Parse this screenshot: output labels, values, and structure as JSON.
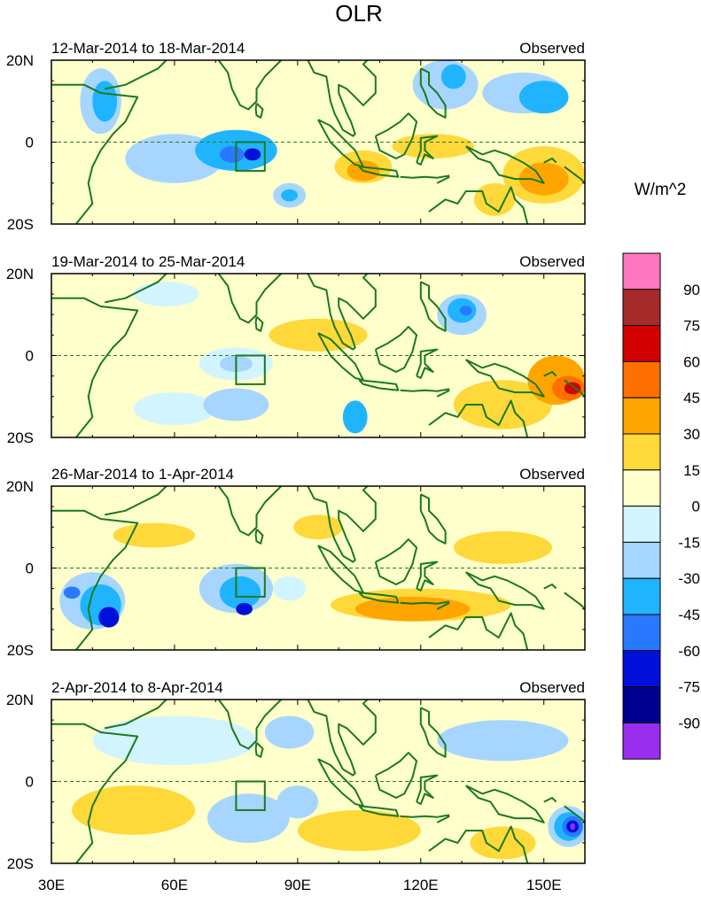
{
  "chart_data": {
    "type": "heatmap",
    "title": "OLR",
    "units": "W/m^2",
    "x_ticks": [
      "30E",
      "60E",
      "90E",
      "120E",
      "150E"
    ],
    "y_ticks": [
      "20N",
      "0",
      "20S"
    ],
    "xlim": [
      30,
      160
    ],
    "ylim": [
      -20,
      20
    ],
    "colorbar": {
      "levels": [
        "90",
        "75",
        "60",
        "45",
        "30",
        "15",
        "0",
        "-15",
        "-30",
        "-45",
        "-60",
        "-75",
        "-90"
      ],
      "colors": [
        "#ff77c0",
        "#a52a2a",
        "#d40000",
        "#ff7000",
        "#ffa500",
        "#ffd83a",
        "#ffffcc",
        "#d2f4ff",
        "#a6d6ff",
        "#20b4ff",
        "#2a78ff",
        "#0010d8",
        "#00008e",
        "#9a2eef"
      ]
    },
    "box_region": {
      "lon": [
        75,
        82
      ],
      "lat": [
        -7,
        0
      ]
    },
    "panels": [
      {
        "period": "12-Mar-2014 to 18-Mar-2014",
        "label": "Observed",
        "anomalies": [
          {
            "lon": 60,
            "lat": -4,
            "rx": 12,
            "ry": 6,
            "value": -30
          },
          {
            "lon": 75,
            "lat": -2,
            "rx": 10,
            "ry": 5,
            "value": -45
          },
          {
            "lon": 74,
            "lat": -3,
            "rx": 3,
            "ry": 2,
            "value": -60
          },
          {
            "lon": 79,
            "lat": -3,
            "rx": 2,
            "ry": 1.5,
            "value": -75
          },
          {
            "lon": 42,
            "lat": 10,
            "rx": 5,
            "ry": 8,
            "value": -30
          },
          {
            "lon": 43,
            "lat": 10,
            "rx": 3,
            "ry": 5,
            "value": -45
          },
          {
            "lon": 88,
            "lat": -13,
            "rx": 4,
            "ry": 3,
            "value": -30
          },
          {
            "lon": 88,
            "lat": -13,
            "rx": 2,
            "ry": 1.5,
            "value": -45
          },
          {
            "lon": 126,
            "lat": 14,
            "rx": 8,
            "ry": 6,
            "value": -30
          },
          {
            "lon": 128,
            "lat": 16,
            "rx": 3,
            "ry": 3,
            "value": -45
          },
          {
            "lon": 145,
            "lat": 12,
            "rx": 10,
            "ry": 5,
            "value": -30
          },
          {
            "lon": 150,
            "lat": 11,
            "rx": 6,
            "ry": 4,
            "value": -45
          },
          {
            "lon": 106,
            "lat": -6,
            "rx": 7,
            "ry": 4,
            "value": 15
          },
          {
            "lon": 106,
            "lat": -7,
            "rx": 4,
            "ry": 2.5,
            "value": 30
          },
          {
            "lon": 123,
            "lat": -1,
            "rx": 10,
            "ry": 3,
            "value": 15
          },
          {
            "lon": 150,
            "lat": -8,
            "rx": 10,
            "ry": 7,
            "value": 15
          },
          {
            "lon": 150,
            "lat": -9,
            "rx": 6,
            "ry": 4,
            "value": 30
          },
          {
            "lon": 138,
            "lat": -14,
            "rx": 5,
            "ry": 4,
            "value": 15
          }
        ]
      },
      {
        "period": "19-Mar-2014 to 25-Mar-2014",
        "label": "Observed",
        "anomalies": [
          {
            "lon": 130,
            "lat": 10,
            "rx": 6,
            "ry": 5,
            "value": -30
          },
          {
            "lon": 130,
            "lat": 11,
            "rx": 3.5,
            "ry": 3,
            "value": -45
          },
          {
            "lon": 131,
            "lat": 11,
            "rx": 1.5,
            "ry": 1.2,
            "value": -60
          },
          {
            "lon": 75,
            "lat": -2,
            "rx": 9,
            "ry": 4,
            "value": -15
          },
          {
            "lon": 75,
            "lat": -2,
            "rx": 4,
            "ry": 2,
            "value": -30
          },
          {
            "lon": 60,
            "lat": -13,
            "rx": 10,
            "ry": 4,
            "value": -15
          },
          {
            "lon": 75,
            "lat": -12,
            "rx": 8,
            "ry": 4,
            "value": -30
          },
          {
            "lon": 104,
            "lat": -15,
            "rx": 3,
            "ry": 4,
            "value": -45
          },
          {
            "lon": 95,
            "lat": 5,
            "rx": 12,
            "ry": 4,
            "value": 15
          },
          {
            "lon": 140,
            "lat": -12,
            "rx": 12,
            "ry": 6,
            "value": 15
          },
          {
            "lon": 153,
            "lat": -6,
            "rx": 7,
            "ry": 6,
            "value": 30
          },
          {
            "lon": 156,
            "lat": -8,
            "rx": 4,
            "ry": 3,
            "value": 45
          },
          {
            "lon": 157,
            "lat": -8,
            "rx": 2,
            "ry": 1.5,
            "value": 60
          },
          {
            "lon": 58,
            "lat": 15,
            "rx": 8,
            "ry": 3,
            "value": -15
          }
        ]
      },
      {
        "period": "26-Mar-2014 to 1-Apr-2014",
        "label": "Observed",
        "anomalies": [
          {
            "lon": 40,
            "lat": -8,
            "rx": 8,
            "ry": 7,
            "value": -30
          },
          {
            "lon": 42,
            "lat": -9,
            "rx": 5,
            "ry": 5,
            "value": -45
          },
          {
            "lon": 35,
            "lat": -6,
            "rx": 2,
            "ry": 1.5,
            "value": -60
          },
          {
            "lon": 44,
            "lat": -12,
            "rx": 2.5,
            "ry": 2.5,
            "value": -75
          },
          {
            "lon": 75,
            "lat": -5,
            "rx": 9,
            "ry": 6,
            "value": -30
          },
          {
            "lon": 76,
            "lat": -6,
            "rx": 5,
            "ry": 4,
            "value": -45
          },
          {
            "lon": 77,
            "lat": -10,
            "rx": 2,
            "ry": 1.5,
            "value": -75
          },
          {
            "lon": 88,
            "lat": -5,
            "rx": 4,
            "ry": 3,
            "value": -15
          },
          {
            "lon": 120,
            "lat": -9,
            "rx": 22,
            "ry": 4,
            "value": 15
          },
          {
            "lon": 118,
            "lat": -10,
            "rx": 14,
            "ry": 3,
            "value": 30
          },
          {
            "lon": 140,
            "lat": 5,
            "rx": 12,
            "ry": 4,
            "value": 15
          },
          {
            "lon": 55,
            "lat": 8,
            "rx": 10,
            "ry": 3,
            "value": 15
          },
          {
            "lon": 95,
            "lat": 10,
            "rx": 6,
            "ry": 3,
            "value": 15
          }
        ]
      },
      {
        "period": "2-Apr-2014 to 8-Apr-2014",
        "label": "Observed",
        "anomalies": [
          {
            "lon": 156,
            "lat": -11,
            "rx": 5,
            "ry": 5,
            "value": -30
          },
          {
            "lon": 156,
            "lat": -11,
            "rx": 3.5,
            "ry": 3.5,
            "value": -45
          },
          {
            "lon": 157,
            "lat": -11,
            "rx": 2.5,
            "ry": 2.5,
            "value": -60
          },
          {
            "lon": 157,
            "lat": -11,
            "rx": 1.5,
            "ry": 1.5,
            "value": -75
          },
          {
            "lon": 157,
            "lat": -11,
            "rx": 0.6,
            "ry": 0.8,
            "value": -90
          },
          {
            "lon": 78,
            "lat": -9,
            "rx": 10,
            "ry": 6,
            "value": -30
          },
          {
            "lon": 90,
            "lat": -5,
            "rx": 5,
            "ry": 4,
            "value": -30
          },
          {
            "lon": 140,
            "lat": 10,
            "rx": 16,
            "ry": 5,
            "value": -30
          },
          {
            "lon": 60,
            "lat": 10,
            "rx": 20,
            "ry": 6,
            "value": -15
          },
          {
            "lon": 88,
            "lat": 12,
            "rx": 6,
            "ry": 4,
            "value": -30
          },
          {
            "lon": 50,
            "lat": -7,
            "rx": 15,
            "ry": 6,
            "value": 15
          },
          {
            "lon": 105,
            "lat": -12,
            "rx": 15,
            "ry": 5,
            "value": 15
          },
          {
            "lon": 140,
            "lat": -15,
            "rx": 8,
            "ry": 4,
            "value": 15
          }
        ]
      }
    ]
  }
}
